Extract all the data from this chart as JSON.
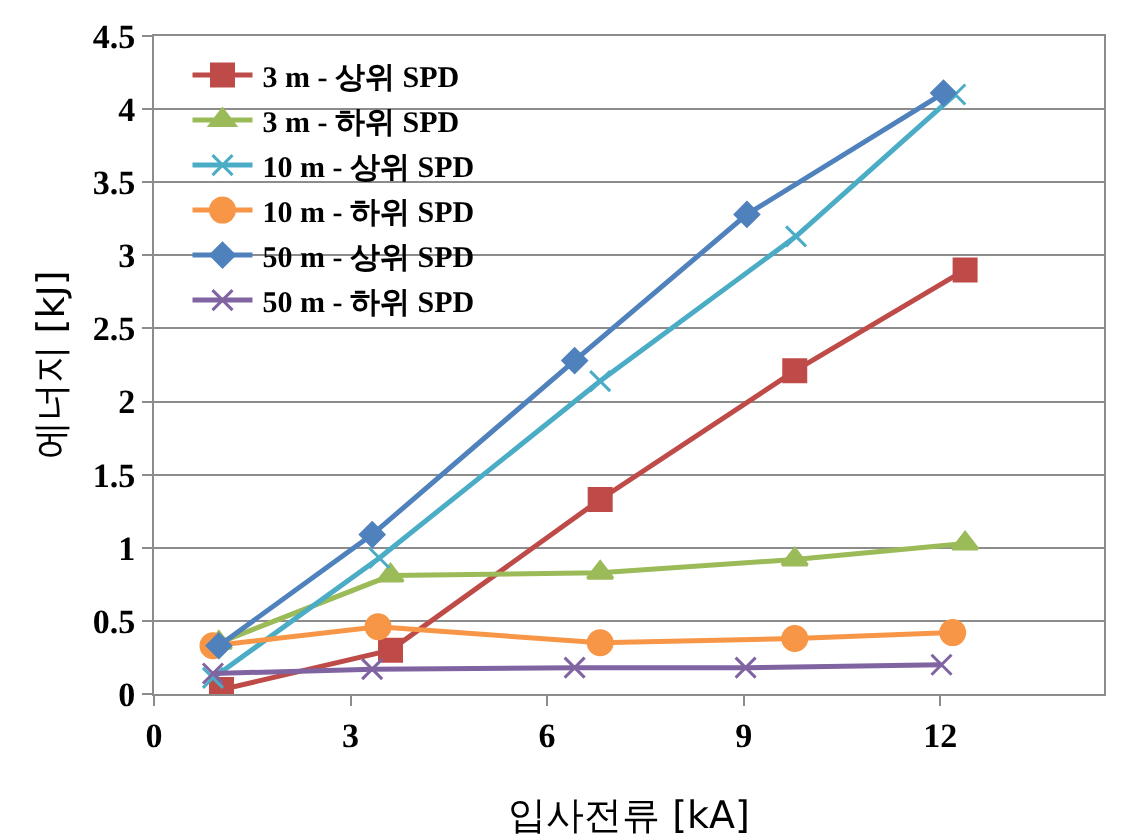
{
  "chart_data": {
    "type": "line",
    "xlabel": "입사전류 [kA]",
    "ylabel": "에너지 [kJ]",
    "xlim": [
      0,
      14.5
    ],
    "xticks": [
      0,
      3,
      6,
      9,
      12
    ],
    "ylim": [
      0,
      4.5
    ],
    "yticks": [
      0,
      0.5,
      1,
      1.5,
      2,
      2.5,
      3,
      3.5,
      4,
      4.5
    ],
    "grid": "y",
    "legend": "top left",
    "line_style": "solid",
    "series": [
      {
        "name": "3 m - 상위 SPD",
        "color": "#be4b48",
        "marker": "square",
        "x": [
          1.03,
          3.61,
          6.81,
          9.78,
          12.38
        ],
        "values": [
          0.03,
          0.3,
          1.33,
          2.21,
          2.9
        ]
      },
      {
        "name": "3 m - 하위 SPD",
        "color": "#9bbb59",
        "marker": "triangle",
        "x": [
          0.99,
          3.61,
          6.81,
          9.78,
          12.38
        ],
        "values": [
          0.35,
          0.81,
          0.83,
          0.92,
          1.03
        ]
      },
      {
        "name": "10 m - 상위 SPD",
        "color": "#4bacc6",
        "marker": "cross",
        "x": [
          0.9,
          3.44,
          6.81,
          9.8,
          12.23
        ],
        "values": [
          0.11,
          0.93,
          2.14,
          3.13,
          4.1
        ]
      },
      {
        "name": "10 m - 하위 SPD",
        "color": "#f79646",
        "marker": "circle",
        "x": [
          0.9,
          3.42,
          6.81,
          9.78,
          12.19
        ],
        "values": [
          0.33,
          0.46,
          0.35,
          0.38,
          0.42
        ]
      },
      {
        "name": "50 m - 상위 SPD",
        "color": "#4f81bd",
        "marker": "diamond",
        "x": [
          0.99,
          3.33,
          6.42,
          9.05,
          12.05
        ],
        "values": [
          0.33,
          1.09,
          2.28,
          3.28,
          4.11
        ]
      },
      {
        "name": "50 m - 하위 SPD",
        "color": "#8064a2",
        "marker": "cross",
        "x": [
          0.9,
          3.33,
          6.42,
          9.03,
          12.02
        ],
        "values": [
          0.14,
          0.17,
          0.18,
          0.18,
          0.2
        ]
      }
    ]
  }
}
